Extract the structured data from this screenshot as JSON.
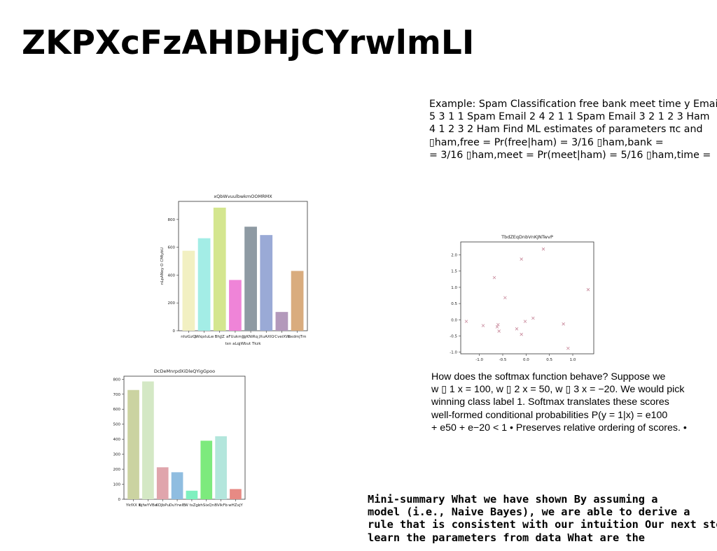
{
  "slide": {
    "title": "ZKPXcFzAHDHjCYrwlmLI",
    "text1": [
      "Example: Spam Classification free bank meet time y Email",
      "5 3 1 1 Spam Email 2 4 2 1 1 Spam Email 3 2 1 2 3 Ham",
      "4 1 2 3 2 Ham Find ML estimates of parameters πc and",
      "▯ham,free = Pr(free|ham) = 3/16 ▯ham,bank =",
      "= 3/16 ▯ham,meet = Pr(meet|ham) = 5/16 ▯ham,time ="
    ],
    "text2": [
      "How does the softmax function behave? Suppose we",
      "w ▯ 1 x = 100, w ▯ 2 x = 50, w ▯ 3 x = −20. We would pick",
      "winning class label 1. Softmax translates these scores",
      "well-formed conditional probabilities P(y = 1|x) = e100",
      "+ e50 + e−20 < 1 • Preserves relative ordering of scores. •"
    ],
    "text3": [
      "Mini-summary What we have shown By assuming a",
      "model (i.e., Naive Bayes), we are able to derive a",
      "rule that is consistent with our intuition Our next step is",
      "learn the parameters from data What are the"
    ]
  },
  "chart_data": [
    {
      "type": "bar",
      "title": "xQbWvuulbwkmOOMRMX",
      "xlabel": "txn aLqjWbut Tkzk",
      "ylabel": "nLpANoy O CMlybU",
      "categories": [
        "nhzGzCl",
        "jWiqxluLw",
        "BhjJZ",
        "aFUukmJJ",
        "gKNiRq",
        "jXuAXlC",
        "rCveiXWi",
        "bxdmjTm"
      ],
      "values": [
        575,
        665,
        885,
        365,
        748,
        688,
        135,
        430
      ],
      "colors": [
        "#f2f0c2",
        "#a3ede6",
        "#d4e68f",
        "#ef84d8",
        "#8e9aa3",
        "#9aaad6",
        "#b399bb",
        "#d9ac7e"
      ],
      "yticks": [
        0,
        200,
        400,
        600,
        800
      ],
      "ylim": [
        0,
        930
      ]
    },
    {
      "type": "bar",
      "title": "DcDeMnrpdXiDleQYigGpoo",
      "xlabel": "",
      "ylabel": "",
      "categories": [
        "YkfXX K",
        "bjfwYVBe",
        "KOJbPu",
        "DuYrwlE",
        "W tsZgl",
        "zhSixQn",
        "BVlkFb",
        "wHZxjY"
      ],
      "values": [
        728,
        785,
        213,
        180,
        57,
        390,
        420,
        68
      ],
      "colors": [
        "#cbd3a1",
        "#d4e8c5",
        "#e0a5ac",
        "#8fbde0",
        "#7ff0bf",
        "#7dea7d",
        "#b3e6dc",
        "#e78a84"
      ],
      "yticks": [
        0,
        100,
        200,
        300,
        400,
        500,
        600,
        700,
        800
      ],
      "ylim": [
        0,
        820
      ]
    },
    {
      "type": "scatter",
      "title": "TbdZEqDnbVnKJNTwvP",
      "xlabel": "",
      "ylabel": "",
      "marker": "x",
      "color": "#c8899b",
      "x": [
        -1.28,
        -0.92,
        -0.68,
        -0.62,
        -0.6,
        -0.58,
        -0.45,
        -0.2,
        -0.1,
        -0.1,
        -0.02,
        0.15,
        0.37,
        0.8,
        0.9,
        1.33
      ],
      "y": [
        -0.05,
        -0.18,
        1.3,
        -0.22,
        -0.15,
        -0.35,
        0.68,
        -0.28,
        1.87,
        -0.45,
        -0.05,
        0.05,
        2.18,
        -0.13,
        -0.88,
        0.93
      ],
      "xticks": [
        -1.0,
        -0.5,
        0.0,
        0.5,
        1.0
      ],
      "yticks": [
        -1.0,
        -0.5,
        0.0,
        0.5,
        1.0,
        1.5,
        2.0
      ],
      "xlim": [
        -1.4,
        1.45
      ],
      "ylim": [
        -1.05,
        2.4
      ]
    }
  ]
}
